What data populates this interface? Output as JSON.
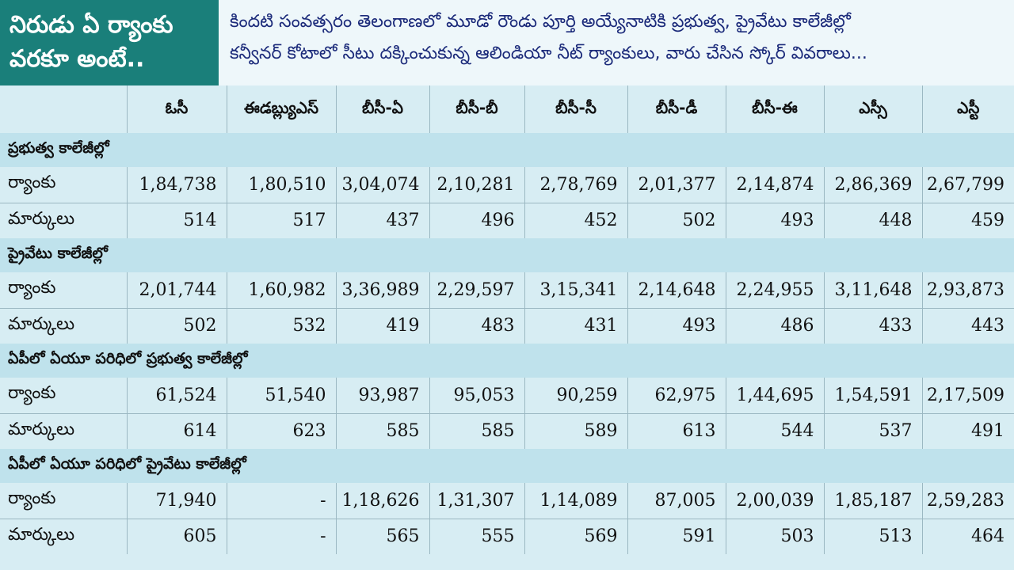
{
  "title": {
    "line1": "నిరుడు ఏ ర్యాంకు",
    "line2": "వరకూ అంటే.."
  },
  "subtitle": {
    "line1": "కిందటి సంవత్సరం తెలంగాణలో మూడో రౌండు పూర్తి అయ్యేనాటికి ప్రభుత్వ, ప్రైవేటు కాలేజీల్లో",
    "line2": "కన్వీనర్ కోటాలో సీటు దక్కించుకున్న ఆలిండియా నీట్ ర్యాంకులు, వారు చేసిన స్కోర్ వివరాలు..."
  },
  "columns": [
    "ఓసీ",
    "ఈడబ్ల్యుఎస్",
    "బీసీ-ఏ",
    "బీసీ-బీ",
    "బీసీ-సీ",
    "బీసీ-డీ",
    "బీసీ-ఈ",
    "ఎస్సీ",
    "ఎస్టీ"
  ],
  "row_labels": {
    "rank": "ర్యాంకు",
    "marks": "మార్కులు"
  },
  "sections": [
    {
      "title": "ప్రభుత్వ కాలేజీల్లో",
      "rank": [
        "1,84,738",
        "1,80,510",
        "3,04,074",
        "2,10,281",
        "2,78,769",
        "2,01,377",
        "2,14,874",
        "2,86,369",
        "2,67,799"
      ],
      "marks": [
        "514",
        "517",
        "437",
        "496",
        "452",
        "502",
        "493",
        "448",
        "459"
      ]
    },
    {
      "title": "ప్రైవేటు కాలేజీల్లో",
      "rank": [
        "2,01,744",
        "1,60,982",
        "3,36,989",
        "2,29,597",
        "3,15,341",
        "2,14,648",
        "2,24,955",
        "3,11,648",
        "2,93,873"
      ],
      "marks": [
        "502",
        "532",
        "419",
        "483",
        "431",
        "493",
        "486",
        "433",
        "443"
      ]
    },
    {
      "title": "ఏపీలో ఏయూ పరిధిలో ప్రభుత్వ కాలేజీల్లో",
      "rank": [
        "61,524",
        "51,540",
        "93,987",
        "95,053",
        "90,259",
        "62,975",
        "1,44,695",
        "1,54,591",
        "2,17,509"
      ],
      "marks": [
        "614",
        "623",
        "585",
        "585",
        "589",
        "613",
        "544",
        "537",
        "491"
      ]
    },
    {
      "title": "ఏపీలో ఏయూ పరిధిలో ప్రైవేటు కాలేజీల్లో",
      "rank": [
        "71,940",
        "-",
        "1,18,626",
        "1,31,307",
        "1,14,089",
        "87,005",
        "2,00,039",
        "1,85,187",
        "2,59,283"
      ],
      "marks": [
        "605",
        "-",
        "565",
        "555",
        "569",
        "591",
        "503",
        "513",
        "464"
      ]
    }
  ],
  "colors": {
    "title_bg": "#1a7f7a",
    "section_bg": "#bfe2ec",
    "body_bg": "#d7edf3",
    "subtitle_text": "#1b2a7a"
  }
}
